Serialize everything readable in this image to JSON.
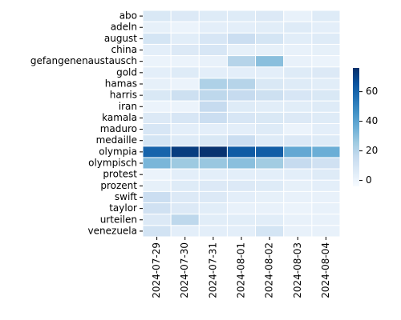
{
  "chart_data": {
    "type": "heatmap",
    "x": [
      "2024-07-29",
      "2024-07-30",
      "2024-07-31",
      "2024-08-01",
      "2024-08-02",
      "2024-08-03",
      "2024-08-04"
    ],
    "categories": [
      "abo",
      "adeln",
      "august",
      "china",
      "gefangenenaustausch",
      "gold",
      "hamas",
      "harris",
      "iran",
      "kamala",
      "maduro",
      "medaille",
      "olympia",
      "olympisch",
      "protest",
      "prozent",
      "swift",
      "taylor",
      "urteilen",
      "venezuela"
    ],
    "values": [
      [
        8,
        7,
        6,
        6,
        7,
        2,
        6
      ],
      [
        3,
        1,
        4,
        4,
        5,
        6,
        4
      ],
      [
        10,
        5,
        9,
        14,
        10,
        5,
        6
      ],
      [
        4,
        7,
        9,
        3,
        3,
        2,
        3
      ],
      [
        1,
        1,
        2,
        20,
        30,
        2,
        1
      ],
      [
        4,
        6,
        4,
        4,
        4,
        6,
        7
      ],
      [
        3,
        1,
        22,
        20,
        8,
        6,
        5
      ],
      [
        8,
        13,
        18,
        16,
        13,
        9,
        8
      ],
      [
        1,
        1,
        16,
        6,
        5,
        5,
        6
      ],
      [
        7,
        9,
        14,
        9,
        8,
        7,
        6
      ],
      [
        9,
        4,
        4,
        4,
        6,
        1,
        4
      ],
      [
        10,
        6,
        8,
        14,
        6,
        7,
        6
      ],
      [
        60,
        72,
        75,
        63,
        62,
        38,
        36
      ],
      [
        33,
        26,
        27,
        30,
        25,
        16,
        12
      ],
      [
        1,
        4,
        4,
        4,
        4,
        4,
        6
      ],
      [
        3,
        6,
        7,
        7,
        6,
        3,
        4
      ],
      [
        14,
        7,
        7,
        4,
        3,
        2,
        2
      ],
      [
        12,
        7,
        5,
        2,
        2,
        1,
        2
      ],
      [
        7,
        18,
        5,
        5,
        5,
        2,
        2
      ],
      [
        11,
        4,
        4,
        4,
        10,
        2,
        2
      ]
    ],
    "colormap": "Blues",
    "clim": [
      -4,
      76
    ],
    "cticks": [
      0,
      20,
      40,
      60
    ]
  }
}
